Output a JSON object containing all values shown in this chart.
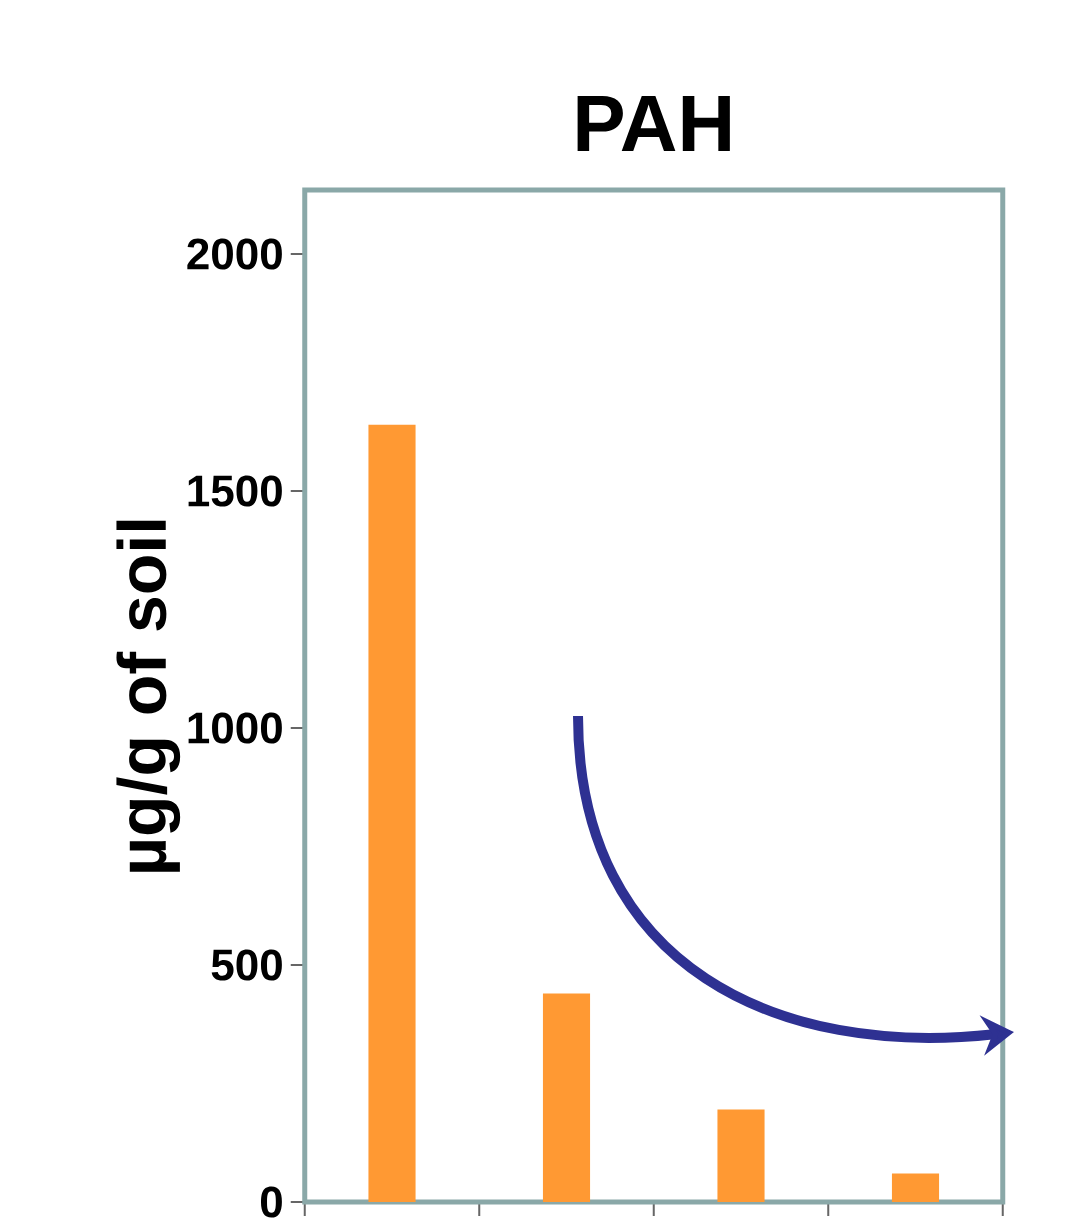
{
  "chart_data": {
    "type": "bar",
    "title": "PAH",
    "ylabel": "µg/g of soil",
    "categories": [
      null,
      null,
      null,
      null
    ],
    "values": [
      1640,
      440,
      195,
      60
    ],
    "color": "#ff9933",
    "ylim": [
      0,
      2135
    ],
    "yticks": [
      0,
      500,
      1000,
      1500,
      2000
    ],
    "tick_labels": "y",
    "grid": false
  }
}
